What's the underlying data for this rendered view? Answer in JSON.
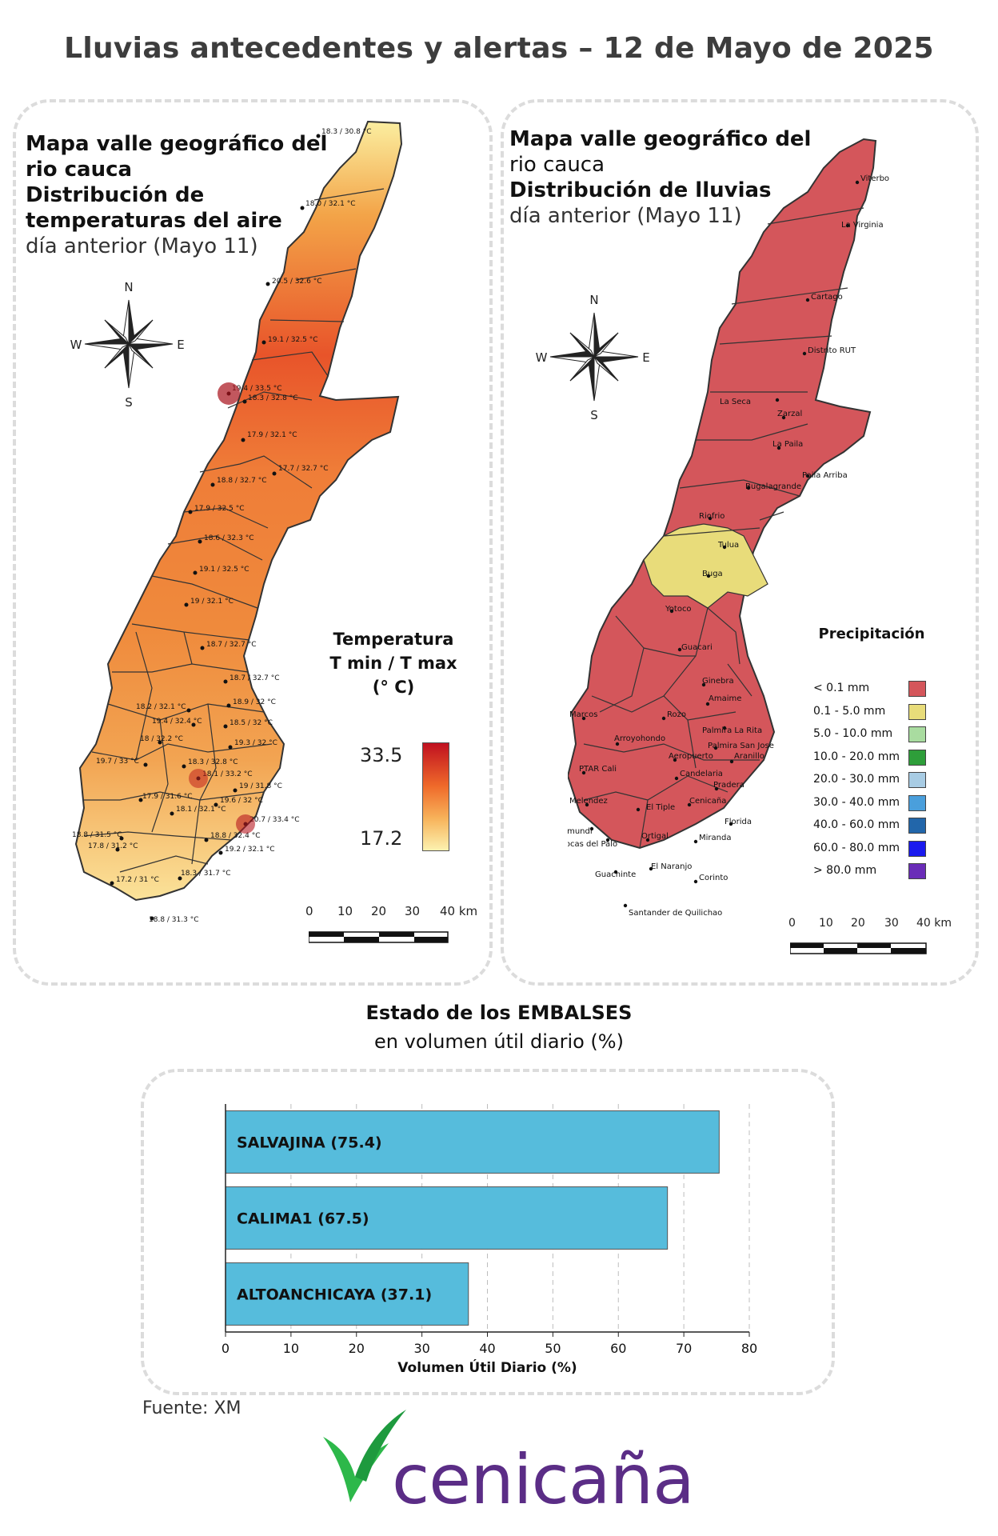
{
  "title": "Lluvias antecedentes y alertas – 12 de Mayo de 2025",
  "temperature_map": {
    "title_bold": "Mapa valle geográfico del rio cauca Distribución de temperaturas del aire",
    "title_line1": "Mapa valle geográfico del",
    "title_line2": "rio cauca",
    "title_line3": "Distribución de",
    "title_line4": "temperaturas del aire",
    "subtitle": "día anterior (Mayo 11)",
    "legend_title_1": "Temperatura",
    "legend_title_2": "T min / T max",
    "legend_title_3": "(° C)",
    "legend_max": "33.5",
    "legend_min": "17.2",
    "compass": {
      "n": "N",
      "s": "S",
      "e": "E",
      "w": "W"
    },
    "scale_labels": [
      "0",
      "10",
      "20",
      "30",
      "40 km"
    ],
    "stations": [
      "18.3 / 30.8 °C",
      "18.0 / 32.1 °C",
      "20.5 / 32.6 °C",
      "19.1 / 32.5 °C",
      "19.4 / 33.5 °C",
      "18.3 / 32.8 °C",
      "17.9 / 32.1 °C",
      "17.7 / 32.7 °C",
      "18.8 / 32.7 °C",
      "17.9 / 32.5 °C",
      "18.6 / 32.3 °C",
      "19.1 / 32.5 °C",
      "19 / 32.1 °C",
      "18.7 / 32.7 °C",
      "18.7 / 32.7 °C",
      "18.9 / 32 °C",
      "18.2 / 32.1 °C",
      "19.4 / 32.4 °C",
      "18.5 / 32 °C",
      "18 / 32.2 °C",
      "19.3 / 32 °C",
      "19.7 / 33 °C",
      "18.3 / 32.8 °C",
      "18.1 / 33.2 °C",
      "19 / 31.8 °C",
      "17.9 / 31.6 °C",
      "19.6 / 32 °C",
      "18.1 / 32.1 °C",
      "20.7 / 33.4 °C",
      "18.8 / 31.5 °C",
      "18.8 / 32.4 °C",
      "17.8 / 31.2 °C",
      "19.2 / 32.1 °C",
      "17.2 / 31 °C",
      "18.3 / 31.7 °C",
      "18.8 / 31.3 °C"
    ]
  },
  "rain_map": {
    "title_line1": "Mapa valle geográfico del",
    "title_line2": "rio cauca",
    "title_line3": "Distribución de lluvias",
    "subtitle": "día anterior (Mayo 11)",
    "legend_title": "Precipitación",
    "compass": {
      "n": "N",
      "s": "S",
      "e": "E",
      "w": "W"
    },
    "scale_labels": [
      "0",
      "10",
      "20",
      "30",
      "40 km"
    ],
    "legend": [
      {
        "label": "< 0.1 mm",
        "color": "#d4565b"
      },
      {
        "label": "0.1 - 5.0 mm",
        "color": "#e8dc7a"
      },
      {
        "label": "5.0 - 10.0 mm",
        "color": "#a9dca0"
      },
      {
        "label": "10.0 - 20.0 mm",
        "color": "#2e9e3a"
      },
      {
        "label": "20.0 - 30.0 mm",
        "color": "#a8cce4"
      },
      {
        "label": "30.0 - 40.0 mm",
        "color": "#4a9fdc"
      },
      {
        "label": "40.0 - 60.0 mm",
        "color": "#2266aa"
      },
      {
        "label": "60.0 - 80.0 mm",
        "color": "#1a1aee"
      },
      {
        "label": "> 80.0 mm",
        "color": "#6a2cb8"
      }
    ],
    "places": [
      "Viterbo",
      "La Virginia",
      "Cartago",
      "Distrito RUT",
      "La Seca",
      "Zarzal",
      "La Paila",
      "Paila Arriba",
      "Bugalagrande",
      "Riofrio",
      "Tulua",
      "Buga",
      "Yotoco",
      "Guacari",
      "Ginebra",
      "Amaime",
      "San Marcos",
      "Rozo",
      "Palmira La Rita",
      "Arroyohondo",
      "Palmira San Jose",
      "Aeropuerto",
      "Aranillo",
      "PTAR Cali",
      "Candelaria",
      "Pradera",
      "Melendez",
      "Cenicaña",
      "El Tiple",
      "Florida",
      "Jamundi",
      "Bocas del Palo",
      "Ortigal",
      "Miranda",
      "Guachinte",
      "El Naranjo",
      "Corinto",
      "Santander de Quilichao"
    ]
  },
  "embalses": {
    "title_bold": "Estado de los EMBALSES",
    "subtitle": "en volumen útil diario (%)"
  },
  "chart_data": {
    "type": "bar",
    "orientation": "horizontal",
    "categories": [
      "SALVAJINA",
      "CALIMA1",
      "ALTOANCHICAYA"
    ],
    "bar_labels": [
      "SALVAJINA (75.4)",
      "CALIMA1 (67.5)",
      "ALTOANCHICAYA (37.1)"
    ],
    "values": [
      75.4,
      67.5,
      37.1
    ],
    "xlabel": "Volumen Útil Diario (%)",
    "xlim": [
      0,
      80
    ],
    "ticks": [
      "0",
      "10",
      "20",
      "30",
      "40",
      "50",
      "60",
      "70",
      "80"
    ],
    "grid": "vertical dashed",
    "color": "#56bcdc"
  },
  "source": "Fuente: XM",
  "logo_text": "cenicaña",
  "colors": {
    "title": "#3d3d3d",
    "logo_purple": "#5b2d86",
    "logo_green": "#2db84a",
    "rain_base": "#d4565b",
    "rain_yellow": "#e8dc7a"
  }
}
